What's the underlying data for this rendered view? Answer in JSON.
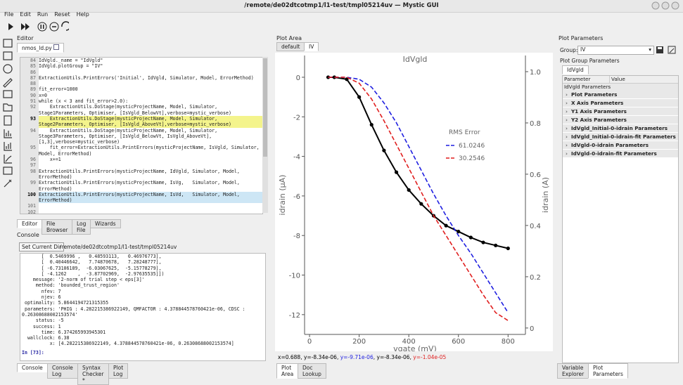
{
  "window": {
    "title": "/remote/de02dtcotmp1/l1-test/tmpl05214uv — Mystic GUI"
  },
  "menu": [
    "File",
    "Edit",
    "Run",
    "Reset",
    "Help"
  ],
  "editor": {
    "title": "Editor",
    "file_tab": "nmos_ld.py",
    "lines": [
      {
        "num": "84",
        "text": "IdVgld._name = \"IdVgld\""
      },
      {
        "num": "85",
        "text": "IdVgld.plotGroup = \"IV\""
      },
      {
        "num": "86",
        "text": ""
      },
      {
        "num": "87",
        "text": "ExtractionUtils.PrintErrors('Initial', IdVgld, Simulator, Model, ErrorMethod)"
      },
      {
        "num": "88",
        "text": ""
      },
      {
        "num": "89",
        "text": "fit_error=1000"
      },
      {
        "num": "90",
        "text": "x=0"
      },
      {
        "num": "91",
        "text": "while (x < 3 and fit_error>2.0):"
      },
      {
        "num": "92",
        "text": "    ExtractionUtils.DoStage(mysticProjectName, Model, Simulator, Stage1Parameters, Optimiser, [IsVgld_BelowVt],verbose=mystic_verbose)"
      },
      {
        "num": "93",
        "text": "    ExtractionUtils.DoStage(mysticProjectName, Model, Simulator, Stage2Parameters, Optimiser, [IsVgld_AboveVt],verbose=mystic_verbose)",
        "highlight": "yellow"
      },
      {
        "num": "94",
        "text": "    ExtractionUtils.DoStage(mysticProjectName, Model, Simulator, Stage3Parameters, Optimiser, [IsVgld_BelowVt, IsVgld_AboveVt], [1,3],verbose=mystic_verbose)"
      },
      {
        "num": "95",
        "text": "    fit_error=ExtractionUtils.PrintErrors(mysticProjectName, IsVgld, Simulator, Model, ErrorMethod)"
      },
      {
        "num": "96",
        "text": "    x+=1"
      },
      {
        "num": "97",
        "text": ""
      },
      {
        "num": "98",
        "text": "ExtractionUtils.PrintErrors(mysticProjectName, IdVgld, Simulator, Model, ErrorMethod)"
      },
      {
        "num": "99",
        "text": "ExtractionUtils.PrintErrors(mysticProjectName, IsVg,   Simulator, Model, ErrorMethod)"
      },
      {
        "num": "100",
        "text": "ExtractionUtils.PrintErrors(mysticProjectName, IsVd,   Simulator, Model, ErrorMethod)",
        "highlight": "blue"
      },
      {
        "num": "101",
        "text": ""
      },
      {
        "num": "102",
        "text": ""
      }
    ],
    "tabs": [
      "Editor",
      "File Browser",
      "Log File",
      "Wizards"
    ]
  },
  "console": {
    "title": "Console",
    "button": "Set Current Dir",
    "path": "/remote/de02dtcotmp1/l1-test/tmpl05214uv",
    "lines": [
      "       [  0.5469996 ,   0.48593113,   0.46976773],",
      "       [  0.40446642,   7.74870678,   7.28248777],",
      "       [ -6.73106189,  -6.03067625,  -5.15778279],",
      "       [ -4.1262    ,  -3.87702969,  -2.97635535]])",
      "    message: '2-norm of trial step < eps[3]'",
      "     method: 'bounded_trust_region'",
      "       nfev: 7",
      "       njev: 6",
      " optimality: 5.8644194721315355",
      " parameters: 'PHIG : 4.282215386922149, QMFACTOR : 4.378844578760421e-06, CDSC : 0.26308688002153574'",
      "     status: -5",
      "    success: 1",
      "       time: 6.374265993945301",
      "  wallclock: 6.38",
      "          x: [4.282215386922149, 4.378844578760421e-06, 0.26308688002153574]"
    ],
    "prompt": "In [73]:",
    "tabs": [
      "Console",
      "Console Log",
      "Syntax Checker *",
      "Plot Log"
    ]
  },
  "plot_area": {
    "title": "Plot Area",
    "tabs": [
      "default",
      "IV"
    ],
    "status": [
      {
        "text": "x=0.688, y=-8.34e-06, ",
        "color": "#000000"
      },
      {
        "text": "y=-9.71e-06",
        "color": "#1f1fe0"
      },
      {
        "text": ", y=-8.34e-06, ",
        "color": "#000000"
      },
      {
        "text": "y=-1.04e-05",
        "color": "#e01f1f"
      }
    ],
    "bottom_tabs": [
      "Plot Area",
      "Doc Lookup"
    ]
  },
  "chart_data": {
    "type": "line",
    "title": "IdVgld",
    "x_label": "vgate (mV)",
    "y_label": "idrain (µA)",
    "y2_label": "idrain (A)",
    "xlim": [
      -20,
      870
    ],
    "ylim": [
      -13,
      1.1
    ],
    "y2lim": [
      -0.025,
      1.063
    ],
    "xticks": [
      0,
      200,
      400,
      600,
      800
    ],
    "yticks": [
      0,
      -2,
      -4,
      -6,
      -8,
      -10,
      -12
    ],
    "y2ticks": [
      0,
      0.2,
      0.4,
      0.6,
      0.8,
      {
        "value": 1.0,
        "label": "1.0"
      }
    ],
    "legend_title": "RMS Error",
    "x": [
      75,
      100,
      150,
      200,
      250,
      300,
      350,
      400,
      450,
      500,
      550,
      600,
      650,
      700,
      750,
      800
    ],
    "series": [
      {
        "name": null,
        "color": "#000000",
        "style": "dots",
        "values": [
          0,
          0,
          -0.1,
          -1.0,
          -2.4,
          -3.7,
          -4.8,
          -5.7,
          -6.4,
          -7.0,
          -7.5,
          -7.8,
          -8.1,
          -8.35,
          -8.5,
          -8.65
        ]
      },
      {
        "name": "61.0246",
        "color": "#1f1fe0",
        "style": "dashed",
        "values": [
          0,
          0,
          0,
          -0.1,
          -0.5,
          -1.3,
          -2.3,
          -3.5,
          -4.7,
          -5.9,
          -7.0,
          -8.0,
          -8.9,
          -9.9,
          -10.9,
          -11.9
        ]
      },
      {
        "name": "30.2546",
        "color": "#e01f1f",
        "style": "dashed",
        "values": [
          0,
          0,
          0,
          -0.3,
          -1.1,
          -2.2,
          -3.4,
          -4.6,
          -5.8,
          -7.0,
          -8.0,
          -9.0,
          -10.0,
          -11.0,
          -11.9,
          -12.3
        ]
      }
    ]
  },
  "plot_parameters": {
    "title": "Plot Parameters",
    "group_label": "Group:",
    "group": "IV",
    "section": "Plot Group Parameters",
    "tab": "IdVgld",
    "columns": [
      "Parameter",
      "Value"
    ],
    "root": "IdVgld Parameters",
    "rows": [
      "Plot Parameters",
      "X Axis Parameters",
      "Y1 Axis Parameters",
      "Y2 Axis Parameters",
      "IdVgld_Initial-0-idrain Parameters",
      "IdVgld_Initial-0-idrain-fit Parameters",
      "IdVgld-0-idrain Parameters",
      "IdVgld-0-idrain-fit Parameters"
    ],
    "bottom_tabs": [
      "Variable Explorer",
      "Plot Parameters"
    ]
  }
}
